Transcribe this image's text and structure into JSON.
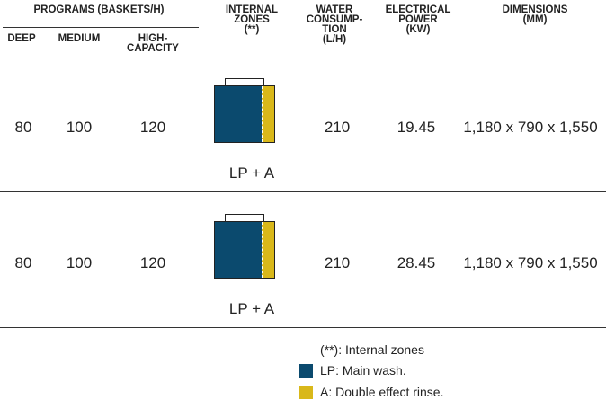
{
  "header": {
    "programs": "PROGRAMS (BASKETS/H)",
    "deep": "DEEP",
    "medium": "MEDIUM",
    "high_capacity": "HIGH-\nCAPACITY",
    "internal_zones": "INTERNAL\nZONES\n(**)",
    "water": "WATER\nCONSUMP-\nTION\n(L/H)",
    "electrical": "ELECTRICAL\nPOWER\n(kW)",
    "dimensions": "DIMENSIONS\n(mm)"
  },
  "rows": [
    {
      "deep": "80",
      "medium": "100",
      "high_capacity": "120",
      "zones": "LP + A",
      "water": "210",
      "power": "19.45",
      "dimensions": "1,180 x 790 x 1,550"
    },
    {
      "deep": "80",
      "medium": "100",
      "high_capacity": "120",
      "zones": "LP + A",
      "water": "210",
      "power": "28.45",
      "dimensions": "1,180 x 790 x 1,550"
    }
  ],
  "legend": {
    "note": "(**): Internal zones",
    "lp": "LP: Main wash.",
    "a": "A: Double effect rinse."
  },
  "colors": {
    "lp": "#0b4a6e",
    "a": "#d9b81a"
  }
}
